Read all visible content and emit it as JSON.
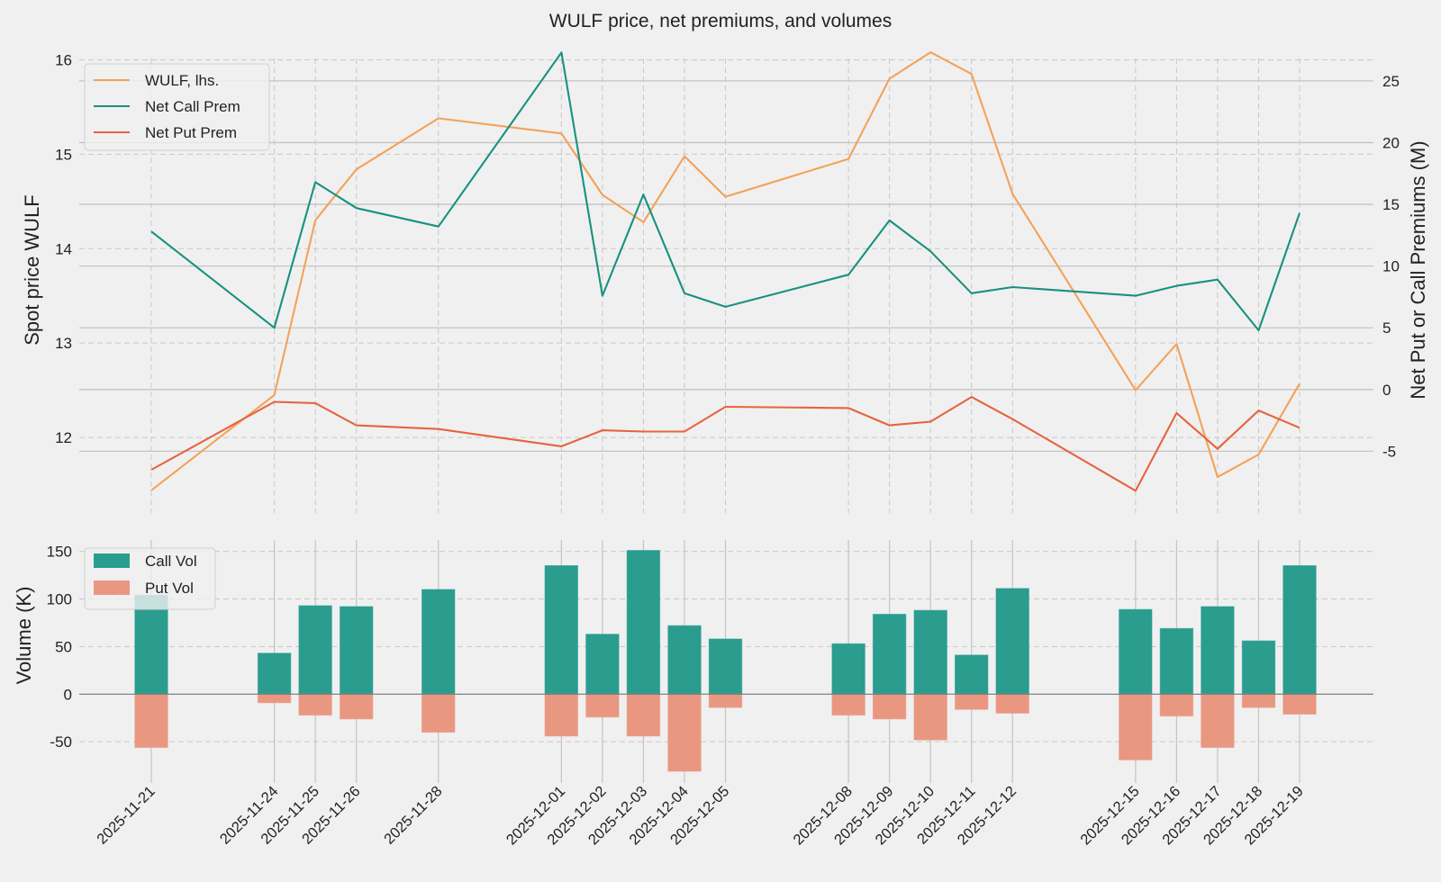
{
  "chart_data": [
    {
      "type": "line",
      "title": "WULF price, net premiums, and volumes",
      "ylabel": "Spot price WULF",
      "ylabel_right": "Net Put or Call Premiums (M)",
      "x": [
        "2025-11-21",
        "2025-11-24",
        "2025-11-25",
        "2025-11-26",
        "2025-11-28",
        "2025-12-01",
        "2025-12-02",
        "2025-12-03",
        "2025-12-04",
        "2025-12-05",
        "2025-12-08",
        "2025-12-09",
        "2025-12-10",
        "2025-12-11",
        "2025-12-12",
        "2025-12-15",
        "2025-12-16",
        "2025-12-17",
        "2025-12-18",
        "2025-12-19"
      ],
      "ylim": [
        11.2,
        16.3
      ],
      "ylim_right": [
        -10,
        29
      ],
      "yticks": [
        12,
        13,
        14,
        15,
        16
      ],
      "yticks_right": [
        -5,
        0,
        5,
        10,
        15,
        20,
        25
      ],
      "legend_position": "top-left",
      "series": [
        {
          "name": "WULF, lhs.",
          "axis": "left",
          "color": "#f4a259",
          "values": [
            11.44,
            12.45,
            14.3,
            14.84,
            15.38,
            15.22,
            14.57,
            14.28,
            14.98,
            14.55,
            14.95,
            15.8,
            16.08,
            15.85,
            14.58,
            12.5,
            12.99,
            11.58,
            11.82,
            12.57
          ]
        },
        {
          "name": "Net Call Prem",
          "axis": "right",
          "color": "#18917f",
          "values": [
            12.8,
            5.0,
            16.8,
            14.7,
            13.2,
            27.3,
            7.6,
            15.8,
            7.8,
            6.7,
            9.3,
            13.7,
            11.2,
            7.8,
            8.3,
            7.6,
            8.4,
            8.9,
            4.8,
            14.3
          ]
        },
        {
          "name": "Net Put Prem",
          "axis": "right",
          "color": "#e5643f",
          "values": [
            -6.5,
            -1.0,
            -1.1,
            -2.9,
            -3.2,
            -4.6,
            -3.3,
            -3.4,
            -3.4,
            -1.4,
            -1.5,
            -2.9,
            -2.6,
            -0.6,
            -2.4,
            -8.2,
            -1.9,
            -4.8,
            -1.7,
            -3.1
          ]
        }
      ]
    },
    {
      "type": "bar",
      "ylabel": "Volume (K)",
      "categories": [
        "2025-11-21",
        "2025-11-24",
        "2025-11-25",
        "2025-11-26",
        "2025-11-28",
        "2025-12-01",
        "2025-12-02",
        "2025-12-03",
        "2025-12-04",
        "2025-12-05",
        "2025-12-08",
        "2025-12-09",
        "2025-12-10",
        "2025-12-11",
        "2025-12-12",
        "2025-12-15",
        "2025-12-16",
        "2025-12-17",
        "2025-12-18",
        "2025-12-19"
      ],
      "ylim": [
        -82,
        162
      ],
      "yticks": [
        -50,
        0,
        50,
        100,
        150
      ],
      "legend_position": "top-left",
      "series": [
        {
          "name": "Call Vol",
          "color": "#2a9d8f",
          "values": [
            104,
            43,
            93,
            92,
            110,
            135,
            63,
            151,
            72,
            58,
            53,
            84,
            88,
            41,
            111,
            89,
            69,
            92,
            56,
            135
          ]
        },
        {
          "name": "Put Vol",
          "color": "#ea9782",
          "values": [
            -56,
            -9,
            -22,
            -26,
            -40,
            -44,
            -24,
            -44,
            -81,
            -14,
            -22,
            -26,
            -48,
            -16,
            -20,
            -69,
            -23,
            -56,
            -14,
            -21
          ]
        }
      ]
    }
  ]
}
